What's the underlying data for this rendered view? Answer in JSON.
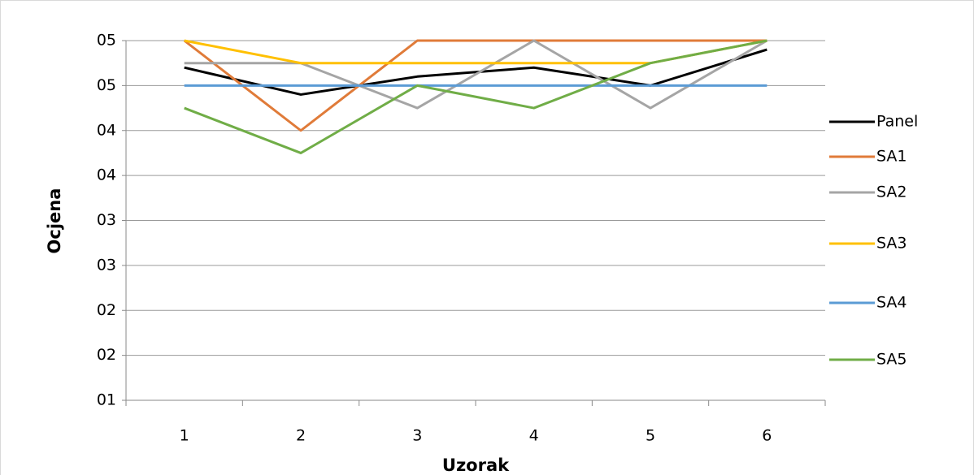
{
  "chart_data": {
    "type": "line",
    "x_label": "Uzorak",
    "y_label": "Ocjena",
    "categories": [
      "1",
      "2",
      "3",
      "4",
      "5",
      "6"
    ],
    "series": [
      {
        "name": "Panel",
        "color": "#000000",
        "values": [
          4.7,
          4.4,
          4.6,
          4.7,
          4.5,
          4.9
        ]
      },
      {
        "name": "SA1",
        "color": "#e07b39",
        "values": [
          5,
          4,
          5,
          5,
          5,
          5
        ]
      },
      {
        "name": "SA2",
        "color": "#a5a5a5",
        "values": [
          4.75,
          4.75,
          4.25,
          5,
          4.25,
          5
        ]
      },
      {
        "name": "SA3",
        "color": "#ffc000",
        "values": [
          5,
          4.75,
          4.75,
          4.75,
          4.75,
          5
        ]
      },
      {
        "name": "SA4",
        "color": "#5b9bd5",
        "values": [
          4.5,
          4.5,
          4.5,
          4.5,
          4.5,
          4.5
        ]
      },
      {
        "name": "SA5",
        "color": "#70ad47",
        "values": [
          4.25,
          3.75,
          4.5,
          4.25,
          4.75,
          5
        ]
      }
    ],
    "ylim": [
      1,
      5
    ],
    "yticks": [
      {
        "value": 1,
        "label": "01"
      },
      {
        "value": 1.5,
        "label": "02"
      },
      {
        "value": 2,
        "label": "02"
      },
      {
        "value": 2.5,
        "label": "03"
      },
      {
        "value": 3,
        "label": "03"
      },
      {
        "value": 3.5,
        "label": "04"
      },
      {
        "value": 4,
        "label": "04"
      },
      {
        "value": 4.5,
        "label": "05"
      },
      {
        "value": 5,
        "label": "05"
      }
    ],
    "grid": true,
    "legend": "right"
  }
}
